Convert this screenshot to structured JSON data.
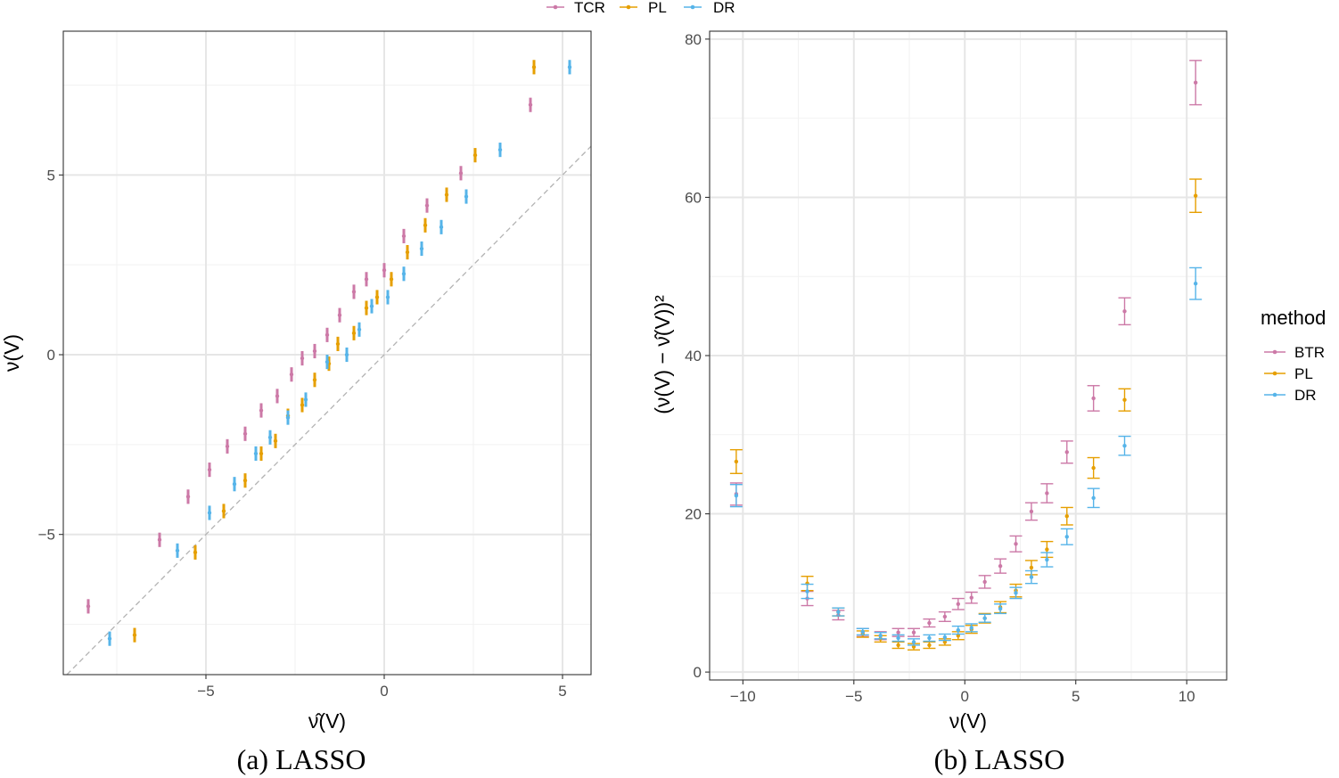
{
  "colors": {
    "TCR": "#cc79a7",
    "BTR": "#cc79a7",
    "PL": "#e69f00",
    "DR": "#56b4e9"
  },
  "top_legend": {
    "items": [
      {
        "label": "TCR",
        "color_key": "TCR"
      },
      {
        "label": "PL",
        "color_key": "PL"
      },
      {
        "label": "DR",
        "color_key": "DR"
      }
    ]
  },
  "right_legend": {
    "title": "method",
    "items": [
      {
        "label": "BTR",
        "color_key": "BTR"
      },
      {
        "label": "PL",
        "color_key": "PL"
      },
      {
        "label": "DR",
        "color_key": "DR"
      }
    ]
  },
  "chart_data": [
    {
      "type": "scatter",
      "caption": "(a) LASSO",
      "xlabel": "ν̂(V)",
      "ylabel": "ν(V)",
      "xlim": [
        -9.0,
        5.8
      ],
      "ylim": [
        -8.9,
        9.0
      ],
      "x_ticks": [
        -5,
        0,
        5
      ],
      "x_tick_labels": [
        "−5",
        "0",
        "5"
      ],
      "y_ticks": [
        -5,
        0,
        5
      ],
      "y_tick_labels": [
        "−5",
        "0",
        "5"
      ],
      "grid": true,
      "reference_line": "y = x (dashed)",
      "series": [
        {
          "name": "TCR",
          "color_key": "TCR",
          "err": 0.2,
          "x": [
            -8.3,
            -6.3,
            -5.5,
            -4.9,
            -4.4,
            -3.9,
            -3.45,
            -3.0,
            -2.6,
            -2.3,
            -1.95,
            -1.6,
            -1.25,
            -0.85,
            -0.5,
            0.0,
            0.55,
            1.2,
            2.15,
            4.1
          ],
          "y": [
            -7.0,
            -5.15,
            -3.95,
            -3.2,
            -2.55,
            -2.2,
            -1.55,
            -1.15,
            -0.55,
            -0.1,
            0.1,
            0.55,
            1.1,
            1.75,
            2.1,
            2.35,
            3.3,
            4.15,
            5.05,
            6.95
          ]
        },
        {
          "name": "PL",
          "color_key": "PL",
          "err": 0.2,
          "x": [
            -7.0,
            -5.3,
            -4.5,
            -3.9,
            -3.45,
            -3.05,
            -2.7,
            -2.3,
            -1.95,
            -1.55,
            -1.3,
            -0.85,
            -0.5,
            -0.2,
            0.2,
            0.65,
            1.15,
            1.75,
            2.55,
            4.2
          ],
          "y": [
            -7.8,
            -5.5,
            -4.35,
            -3.5,
            -2.75,
            -2.4,
            -1.7,
            -1.4,
            -0.7,
            -0.25,
            0.3,
            0.6,
            1.3,
            1.6,
            2.1,
            2.85,
            3.6,
            4.45,
            5.55,
            8.0
          ]
        },
        {
          "name": "DR",
          "color_key": "DR",
          "err": 0.2,
          "x": [
            -7.7,
            -5.8,
            -4.9,
            -4.2,
            -3.6,
            -3.2,
            -2.7,
            -2.2,
            -1.6,
            -1.05,
            -0.7,
            -0.35,
            0.1,
            0.55,
            1.05,
            1.6,
            2.3,
            3.25,
            5.2
          ],
          "y": [
            -7.9,
            -5.45,
            -4.4,
            -3.6,
            -2.75,
            -2.3,
            -1.75,
            -1.25,
            -0.2,
            0.0,
            0.7,
            1.35,
            1.6,
            2.25,
            2.95,
            3.55,
            4.4,
            5.7,
            8.0
          ]
        }
      ]
    },
    {
      "type": "scatter",
      "caption": "(b) LASSO",
      "xlabel": "ν(V)",
      "ylabel": "(ν(V) − ν̂(V))²",
      "xlim": [
        -11.5,
        11.8
      ],
      "ylim": [
        -1.0,
        81.0
      ],
      "x_ticks": [
        -10,
        -5,
        0,
        5,
        10
      ],
      "x_tick_labels": [
        "−10",
        "−5",
        "0",
        "5",
        "10"
      ],
      "y_ticks": [
        0,
        20,
        40,
        60,
        80
      ],
      "y_tick_labels": [
        "0",
        "20",
        "40",
        "60",
        "80"
      ],
      "grid": true,
      "series": [
        {
          "name": "BTR",
          "color_key": "BTR",
          "x": [
            -10.3,
            -7.1,
            -5.7,
            -4.6,
            -3.8,
            -3.0,
            -2.3,
            -1.6,
            -0.9,
            -0.3,
            0.3,
            0.9,
            1.6,
            2.3,
            3.0,
            3.7,
            4.6,
            5.8,
            7.2,
            10.4
          ],
          "y": [
            22.5,
            9.3,
            7.2,
            5.0,
            4.6,
            5.0,
            5.0,
            6.2,
            7.0,
            8.6,
            9.4,
            11.4,
            13.4,
            16.2,
            20.3,
            22.6,
            27.8,
            34.6,
            45.6,
            74.5
          ],
          "err": [
            1.4,
            0.9,
            0.6,
            0.5,
            0.5,
            0.5,
            0.5,
            0.5,
            0.6,
            0.7,
            0.7,
            0.8,
            0.9,
            1.0,
            1.1,
            1.2,
            1.4,
            1.6,
            1.7,
            2.8
          ]
        },
        {
          "name": "PL",
          "color_key": "PL",
          "x": [
            -10.3,
            -7.1,
            -5.7,
            -4.6,
            -3.8,
            -3.0,
            -2.3,
            -1.6,
            -0.9,
            -0.3,
            0.3,
            0.9,
            1.6,
            2.3,
            3.0,
            3.7,
            4.6,
            5.8,
            7.2,
            10.4
          ],
          "y": [
            26.6,
            11.2,
            7.6,
            4.8,
            4.2,
            3.4,
            3.2,
            3.4,
            3.8,
            4.6,
            5.4,
            6.8,
            8.2,
            10.3,
            13.2,
            15.5,
            19.7,
            25.8,
            34.4,
            60.2
          ],
          "err": [
            1.5,
            0.9,
            0.5,
            0.4,
            0.4,
            0.4,
            0.4,
            0.4,
            0.4,
            0.5,
            0.5,
            0.6,
            0.7,
            0.8,
            0.9,
            1.0,
            1.1,
            1.3,
            1.4,
            2.1
          ]
        },
        {
          "name": "DR",
          "color_key": "DR",
          "x": [
            -10.3,
            -7.1,
            -5.7,
            -4.6,
            -3.8,
            -3.0,
            -2.3,
            -1.6,
            -0.9,
            -0.3,
            0.3,
            0.9,
            1.6,
            2.3,
            3.0,
            3.7,
            4.6,
            5.8,
            7.2,
            10.4
          ],
          "y": [
            22.3,
            10.2,
            7.6,
            5.1,
            4.6,
            4.3,
            3.8,
            4.3,
            4.4,
            5.3,
            5.6,
            6.8,
            8.0,
            10.0,
            12.0,
            14.2,
            17.1,
            22.0,
            28.6,
            49.1
          ],
          "err": [
            1.4,
            0.9,
            0.5,
            0.4,
            0.4,
            0.4,
            0.4,
            0.4,
            0.4,
            0.5,
            0.5,
            0.5,
            0.6,
            0.7,
            0.8,
            0.9,
            1.0,
            1.2,
            1.2,
            2.0
          ]
        }
      ]
    }
  ]
}
